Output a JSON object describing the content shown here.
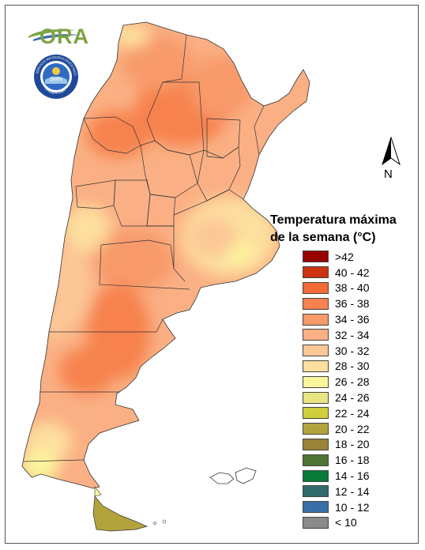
{
  "logo": {
    "text": "ORA"
  },
  "seal": {
    "ring_text": "SERVICIO METEOROLOGICO NACIONAL",
    "bottom_text": "ARGENTINA",
    "center_text": "SMN"
  },
  "north_arrow": {
    "label": "N"
  },
  "legend": {
    "title_line1": "Temperatura máxima",
    "title_line2": "de la semana (°C)",
    "items": [
      {
        "label": ">42",
        "color": "#990000"
      },
      {
        "label": "40 - 42",
        "color": "#cc3311"
      },
      {
        "label": "38 - 40",
        "color": "#f26a35"
      },
      {
        "label": "36 - 38",
        "color": "#f7824e"
      },
      {
        "label": "34 - 36",
        "color": "#f89a6a"
      },
      {
        "label": "32 - 34",
        "color": "#fab084"
      },
      {
        "label": "30 - 32",
        "color": "#fcc797"
      },
      {
        "label": "28 - 30",
        "color": "#fddf9f"
      },
      {
        "label": "26 - 28",
        "color": "#fbf59c"
      },
      {
        "label": "24 - 26",
        "color": "#e8e682"
      },
      {
        "label": "22 - 24",
        "color": "#cfcf3b"
      },
      {
        "label": "20 - 22",
        "color": "#b3a33d"
      },
      {
        "label": "18 - 20",
        "color": "#9a8239"
      },
      {
        "label": "16 - 18",
        "color": "#4e7533"
      },
      {
        "label": "14 - 16",
        "color": "#087a3a"
      },
      {
        "label": "12 - 14",
        "color": "#2f6b6b"
      },
      {
        "label": "10 - 12",
        "color": "#3a6ea8"
      },
      {
        "label": "< 10",
        "color": "#8a8a8a"
      }
    ]
  }
}
